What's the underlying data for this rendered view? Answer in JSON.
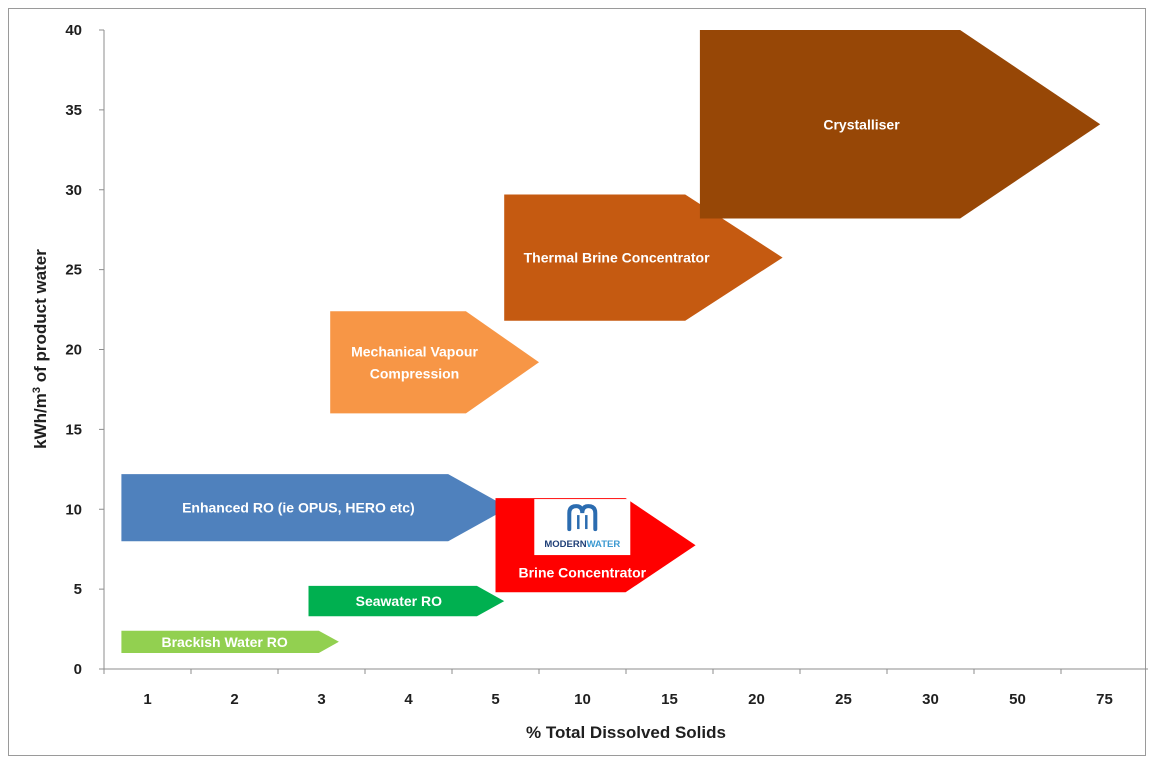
{
  "chart_data": {
    "type": "range-arrows",
    "xlabel": "% Total Dissolved Solids",
    "ylabel_main": "kWh/m",
    "ylabel_sup": "3",
    "ylabel_rest": " of product water",
    "x_categories": [
      "1",
      "2",
      "3",
      "4",
      "5",
      "10",
      "15",
      "20",
      "25",
      "30",
      "50",
      "75"
    ],
    "y_ticks": [
      "0",
      "5",
      "10",
      "15",
      "20",
      "25",
      "30",
      "35",
      "40"
    ],
    "ylim": [
      0,
      40
    ],
    "series": [
      {
        "name": "Brackish Water RO",
        "x_start": 0.7,
        "x_end": 3.2,
        "y_low": 1.0,
        "y_high": 2.4,
        "color": "#92d050",
        "label_lines": [
          "Brackish Water RO"
        ]
      },
      {
        "name": "Seawater RO",
        "x_start": 2.85,
        "x_end": 5.1,
        "y_low": 3.3,
        "y_high": 5.2,
        "color": "#00b050",
        "label_lines": [
          "Seawater RO"
        ]
      },
      {
        "name": "Enhanced RO (ie OPUS, HERO etc)",
        "x_start": 0.7,
        "x_end": 5.15,
        "y_low": 8.0,
        "y_high": 12.2,
        "color": "#4f81bd",
        "label_lines": [
          "Enhanced RO (ie OPUS, HERO etc)"
        ]
      },
      {
        "name": "Brine Concentrator",
        "x_start": 5.0,
        "x_end": 7.3,
        "y_low": 4.8,
        "y_high": 10.7,
        "color": "#ff0000",
        "label_lines": [
          "Brine Concentrator"
        ],
        "logo_text": "MODERNWATER"
      },
      {
        "name": "Mechanical Vapour Compression",
        "x_start": 3.1,
        "x_end": 5.5,
        "y_low": 16.0,
        "y_high": 22.4,
        "color": "#f79646",
        "label_lines": [
          "Mechanical Vapour",
          "Compression"
        ]
      },
      {
        "name": "Thermal Brine Concentrator",
        "x_start": 5.1,
        "x_end": 8.3,
        "y_low": 21.8,
        "y_high": 29.7,
        "color": "#c55a11",
        "label_lines": [
          "Thermal Brine Concentrator"
        ]
      },
      {
        "name": "Crystalliser",
        "x_start": 7.35,
        "x_end": 11.95,
        "y_low": 28.2,
        "y_high": 40.0,
        "color": "#974706",
        "label_lines": [
          "Crystalliser"
        ]
      }
    ]
  }
}
